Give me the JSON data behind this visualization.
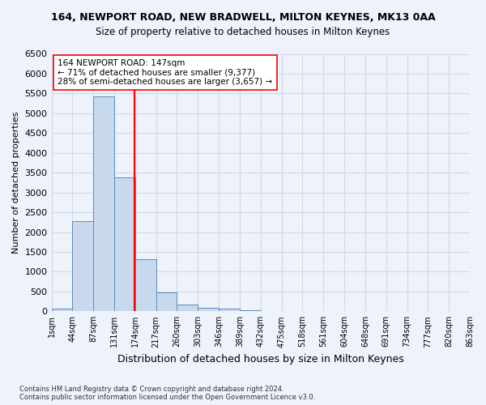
{
  "title1": "164, NEWPORT ROAD, NEW BRADWELL, MILTON KEYNES, MK13 0AA",
  "title2": "Size of property relative to detached houses in Milton Keynes",
  "xlabel": "Distribution of detached houses by size in Milton Keynes",
  "ylabel": "Number of detached properties",
  "footnote": "Contains HM Land Registry data © Crown copyright and database right 2024.\nContains public sector information licensed under the Open Government Licence v3.0.",
  "bin_labels": [
    "1sqm",
    "44sqm",
    "87sqm",
    "131sqm",
    "174sqm",
    "217sqm",
    "260sqm",
    "303sqm",
    "346sqm",
    "389sqm",
    "432sqm",
    "475sqm",
    "518sqm",
    "561sqm",
    "604sqm",
    "648sqm",
    "691sqm",
    "734sqm",
    "777sqm",
    "820sqm",
    "863sqm"
  ],
  "bar_values": [
    75,
    2280,
    5420,
    3380,
    1310,
    480,
    160,
    90,
    60,
    30,
    10,
    5,
    3,
    2,
    1,
    1,
    0,
    0,
    0,
    0
  ],
  "bar_color": "#c9d9ed",
  "bar_edge_color": "#5b8db8",
  "vline_x": 3.45,
  "vline_color": "red",
  "annotation_text": "164 NEWPORT ROAD: 147sqm\n← 71% of detached houses are smaller (9,377)\n28% of semi-detached houses are larger (3,657) →",
  "annotation_box_color": "white",
  "annotation_box_edge": "red",
  "ylim": [
    0,
    6500
  ],
  "yticks": [
    0,
    500,
    1000,
    1500,
    2000,
    2500,
    3000,
    3500,
    4000,
    4500,
    5000,
    5500,
    6000,
    6500
  ],
  "grid_color": "#d0d8e8",
  "background_color": "#eef2fa"
}
